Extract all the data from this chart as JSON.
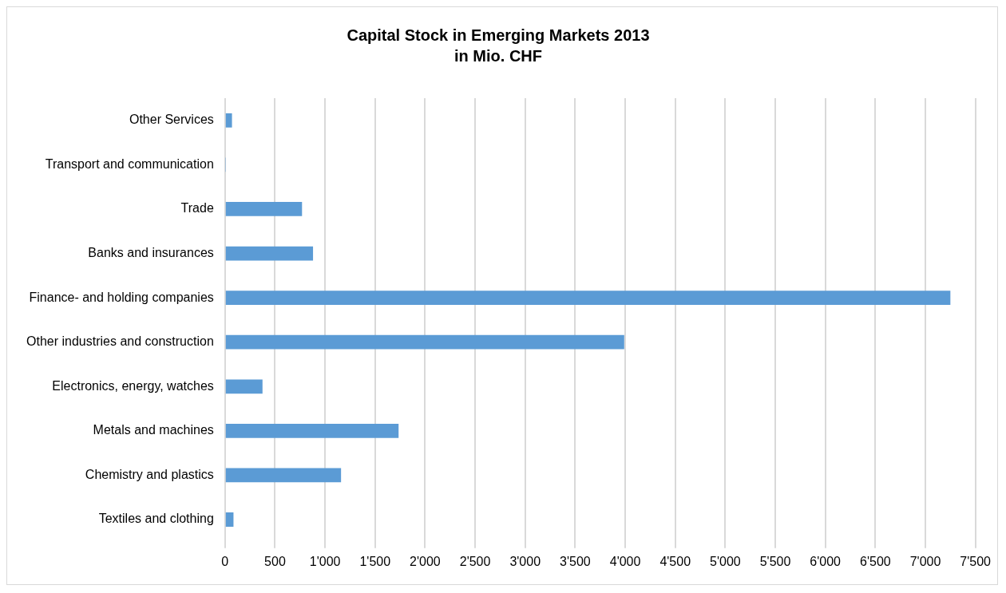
{
  "chart_data": {
    "type": "bar",
    "orientation": "horizontal",
    "title": "Capital Stock in Emerging Markets 2013",
    "subtitle": "in Mio. CHF",
    "categories": [
      "Other Services",
      "Transport and communication",
      "Trade",
      "Banks and insurances",
      "Finance- and holding companies",
      "Other industries and construction",
      "Electronics, energy, watches",
      "Metals and machines",
      "Chemistry and plastics",
      "Textiles and clothing"
    ],
    "values": [
      70,
      5,
      770,
      880,
      7250,
      3990,
      375,
      1735,
      1160,
      85
    ],
    "color": "#5b9bd5",
    "xlim": [
      0,
      7500
    ],
    "xticks": [
      0,
      500,
      {
        "value": 1000,
        "label": "1'000"
      },
      {
        "value": 1500,
        "label": "1'500"
      },
      {
        "value": 2000,
        "label": "2'000"
      },
      {
        "value": 2500,
        "label": "2'500"
      },
      {
        "value": 3000,
        "label": "3'000"
      },
      {
        "value": 3500,
        "label": "3'500"
      },
      {
        "value": 4000,
        "label": "4'000"
      },
      {
        "value": 4500,
        "label": "4'500"
      },
      {
        "value": 5000,
        "label": "5'000"
      },
      {
        "value": 5500,
        "label": "5'500"
      },
      {
        "value": 6000,
        "label": "6'000"
      },
      {
        "value": 6500,
        "label": "6'500"
      },
      {
        "value": 7000,
        "label": "7'000"
      },
      {
        "value": 7500,
        "label": "7'500"
      }
    ],
    "grid": "x",
    "legend": false
  }
}
